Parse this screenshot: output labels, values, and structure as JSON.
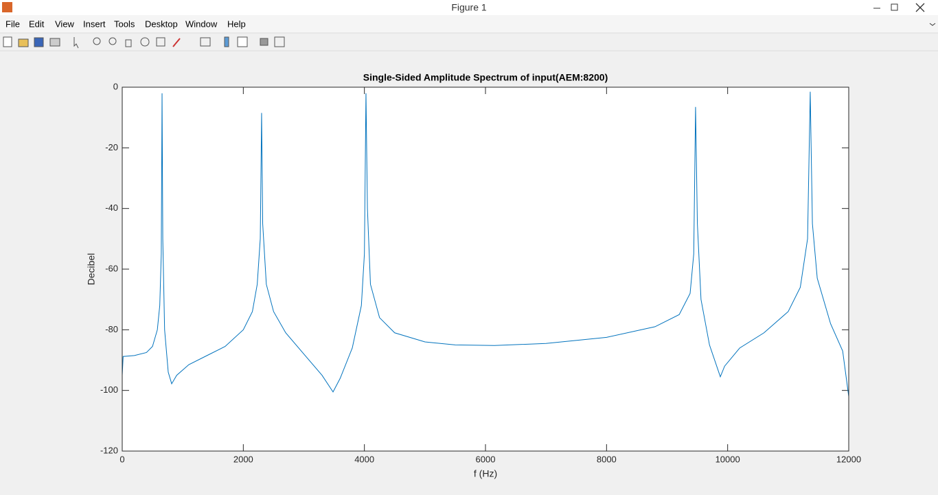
{
  "window": {
    "title": "Figure 1",
    "menu": [
      "File",
      "Edit",
      "View",
      "Insert",
      "Tools",
      "Desktop",
      "Window",
      "Help"
    ]
  },
  "chart_data": {
    "type": "line",
    "title": "Single-Sided Amplitude Spectrum of input(AEM:8200)",
    "xlabel": "f (Hz)",
    "ylabel": "Decibel",
    "x": [
      0,
      15,
      200,
      400,
      500,
      580,
      620,
      645,
      658,
      670,
      700,
      760,
      817,
      900,
      1100,
      1400,
      1700,
      2000,
      2150,
      2230,
      2280,
      2302,
      2320,
      2380,
      2500,
      2700,
      3000,
      3300,
      3482,
      3600,
      3800,
      3950,
      4000,
      4026,
      4050,
      4100,
      4250,
      4500,
      5000,
      5500,
      6147,
      7000,
      8000,
      8800,
      9200,
      9380,
      9440,
      9470,
      9500,
      9560,
      9700,
      9879,
      9950,
      10200,
      10600,
      11000,
      11200,
      11320,
      11364,
      11400,
      11480,
      11700,
      11900,
      12000
    ],
    "values": [
      -95,
      -88.8,
      -88.5,
      -87.5,
      -85.5,
      -80,
      -72,
      -55,
      -2,
      -50,
      -80,
      -94,
      -97.8,
      -95,
      -91.5,
      -88.5,
      -85.5,
      -80,
      -74,
      -65,
      -50,
      -8.5,
      -45,
      -65,
      -74,
      -81,
      -88,
      -95,
      -100.5,
      -96,
      -86,
      -72,
      -55,
      -2,
      -40,
      -65,
      -76,
      -81,
      -84,
      -85,
      -85.2,
      -84.5,
      -82.5,
      -79,
      -75,
      -68,
      -55,
      -6.5,
      -45,
      -70,
      -85,
      -95.5,
      -92,
      -86,
      -81,
      -74,
      -66,
      -50,
      -1.5,
      -45,
      -63,
      -78,
      -87,
      -102
    ],
    "color": "#0072bd",
    "xlim": [
      0,
      12000
    ],
    "xticks": [
      0,
      2000,
      4000,
      6000,
      8000,
      10000,
      12000
    ],
    "ylim": [
      -120,
      0
    ],
    "yticks": [
      -120,
      -100,
      -80,
      -60,
      -40,
      -20,
      0
    ],
    "grid": false
  }
}
